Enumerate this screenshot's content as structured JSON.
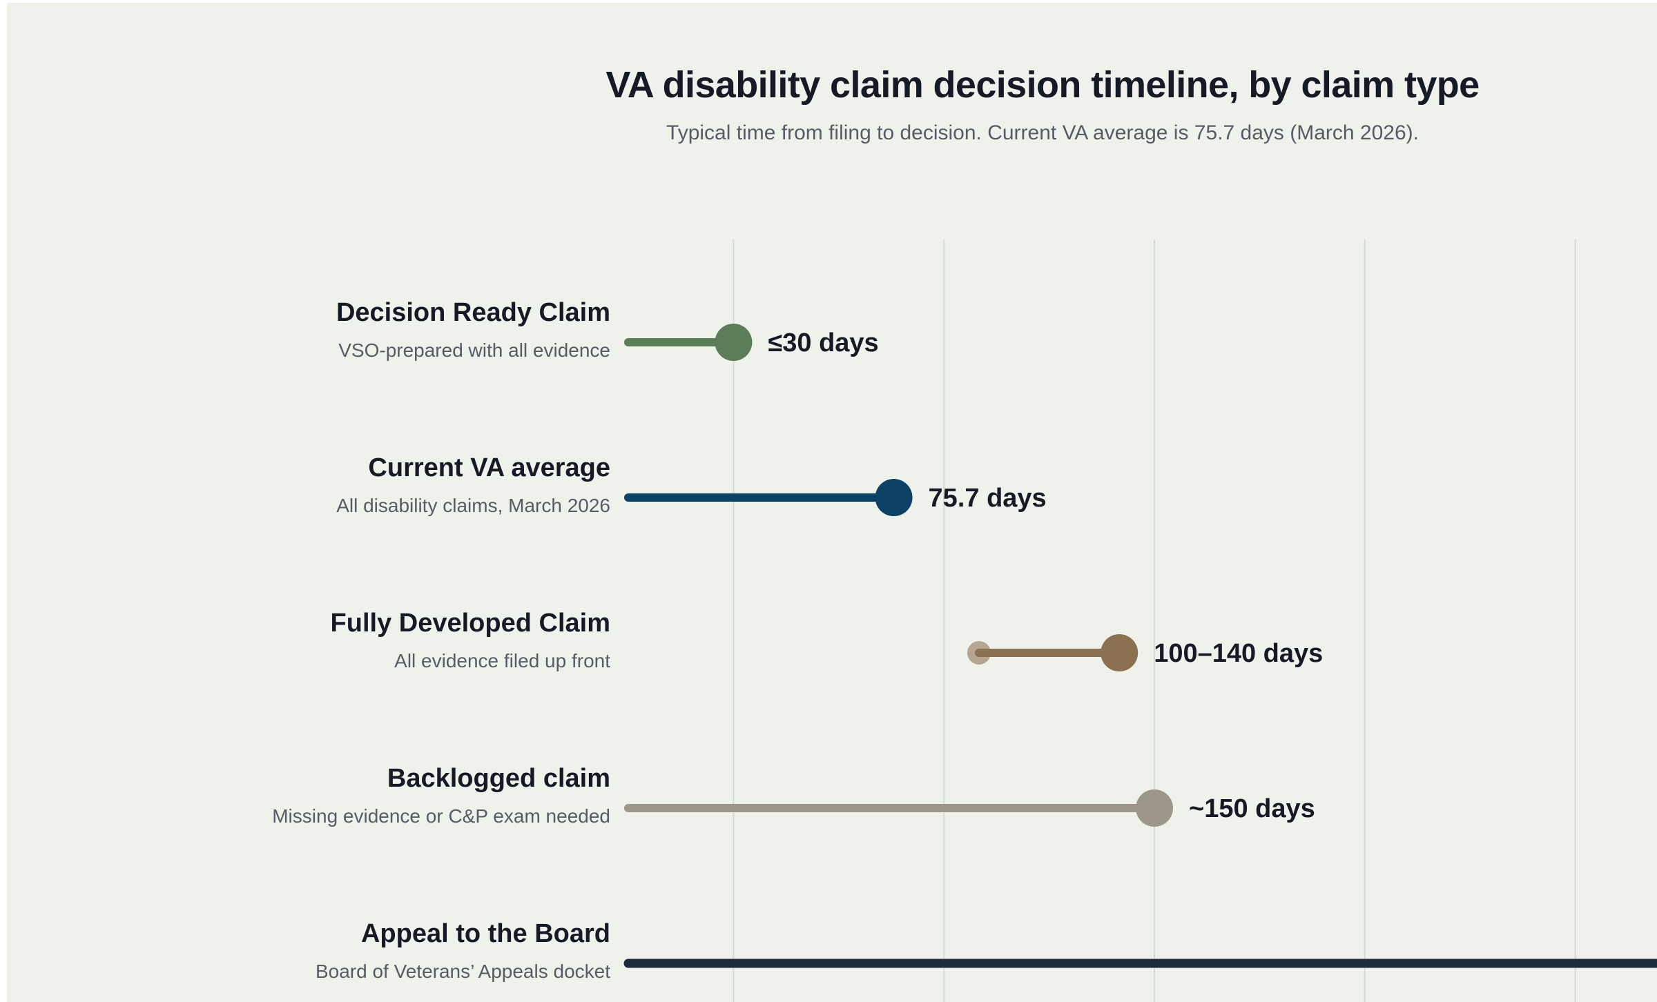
{
  "header": {
    "title": "VA disability claim decision timeline, by claim type",
    "subtitle": "Typical time from filing to decision. Current VA average is 75.7 days (March 2026)."
  },
  "chart_data": {
    "type": "dot-range",
    "title": "VA disability claim decision timeline, by claim type",
    "subtitle": "Typical time from filing to decision. Current VA average is 75.7 days (March 2026).",
    "xlabel": "",
    "ylabel": "",
    "unit": "days",
    "xlim": [
      0,
      450
    ],
    "gridlines": [
      30,
      90,
      150,
      210,
      270
    ],
    "grid": true,
    "legend": "none",
    "rows": [
      {
        "name": "Decision Ready Claim",
        "description": "VSO-prepared with all evidence",
        "start": 0,
        "end": 30,
        "value_label": "≤30 days",
        "color": "#5b7d57",
        "show_start_dot": false,
        "end_dot": true
      },
      {
        "name": "Current VA average",
        "description": "All disability claims, March 2026",
        "start": 0,
        "end": 75.7,
        "value_label": "75.7 days",
        "color": "#0b4266",
        "show_start_dot": false,
        "end_dot": true
      },
      {
        "name": "Fully Developed Claim",
        "description": "All evidence filed up front",
        "start": 100,
        "end": 140,
        "value_label": "100–140 days",
        "color": "#8a7152",
        "start_color": "#b6a58f",
        "show_start_dot": true,
        "end_dot": true
      },
      {
        "name": "Backlogged claim",
        "description": "Missing evidence or C&P exam needed",
        "start": 0,
        "end": 150,
        "value_label": "~150 days",
        "color": "#9d968a",
        "show_start_dot": false,
        "end_dot": true
      },
      {
        "name": "Appeal to the Board",
        "description": "Board of Veterans’ Appeals docket",
        "start": 0,
        "end": 450,
        "value_label": "",
        "color": "#1d2a3e",
        "show_start_dot": false,
        "end_dot": false
      }
    ]
  }
}
